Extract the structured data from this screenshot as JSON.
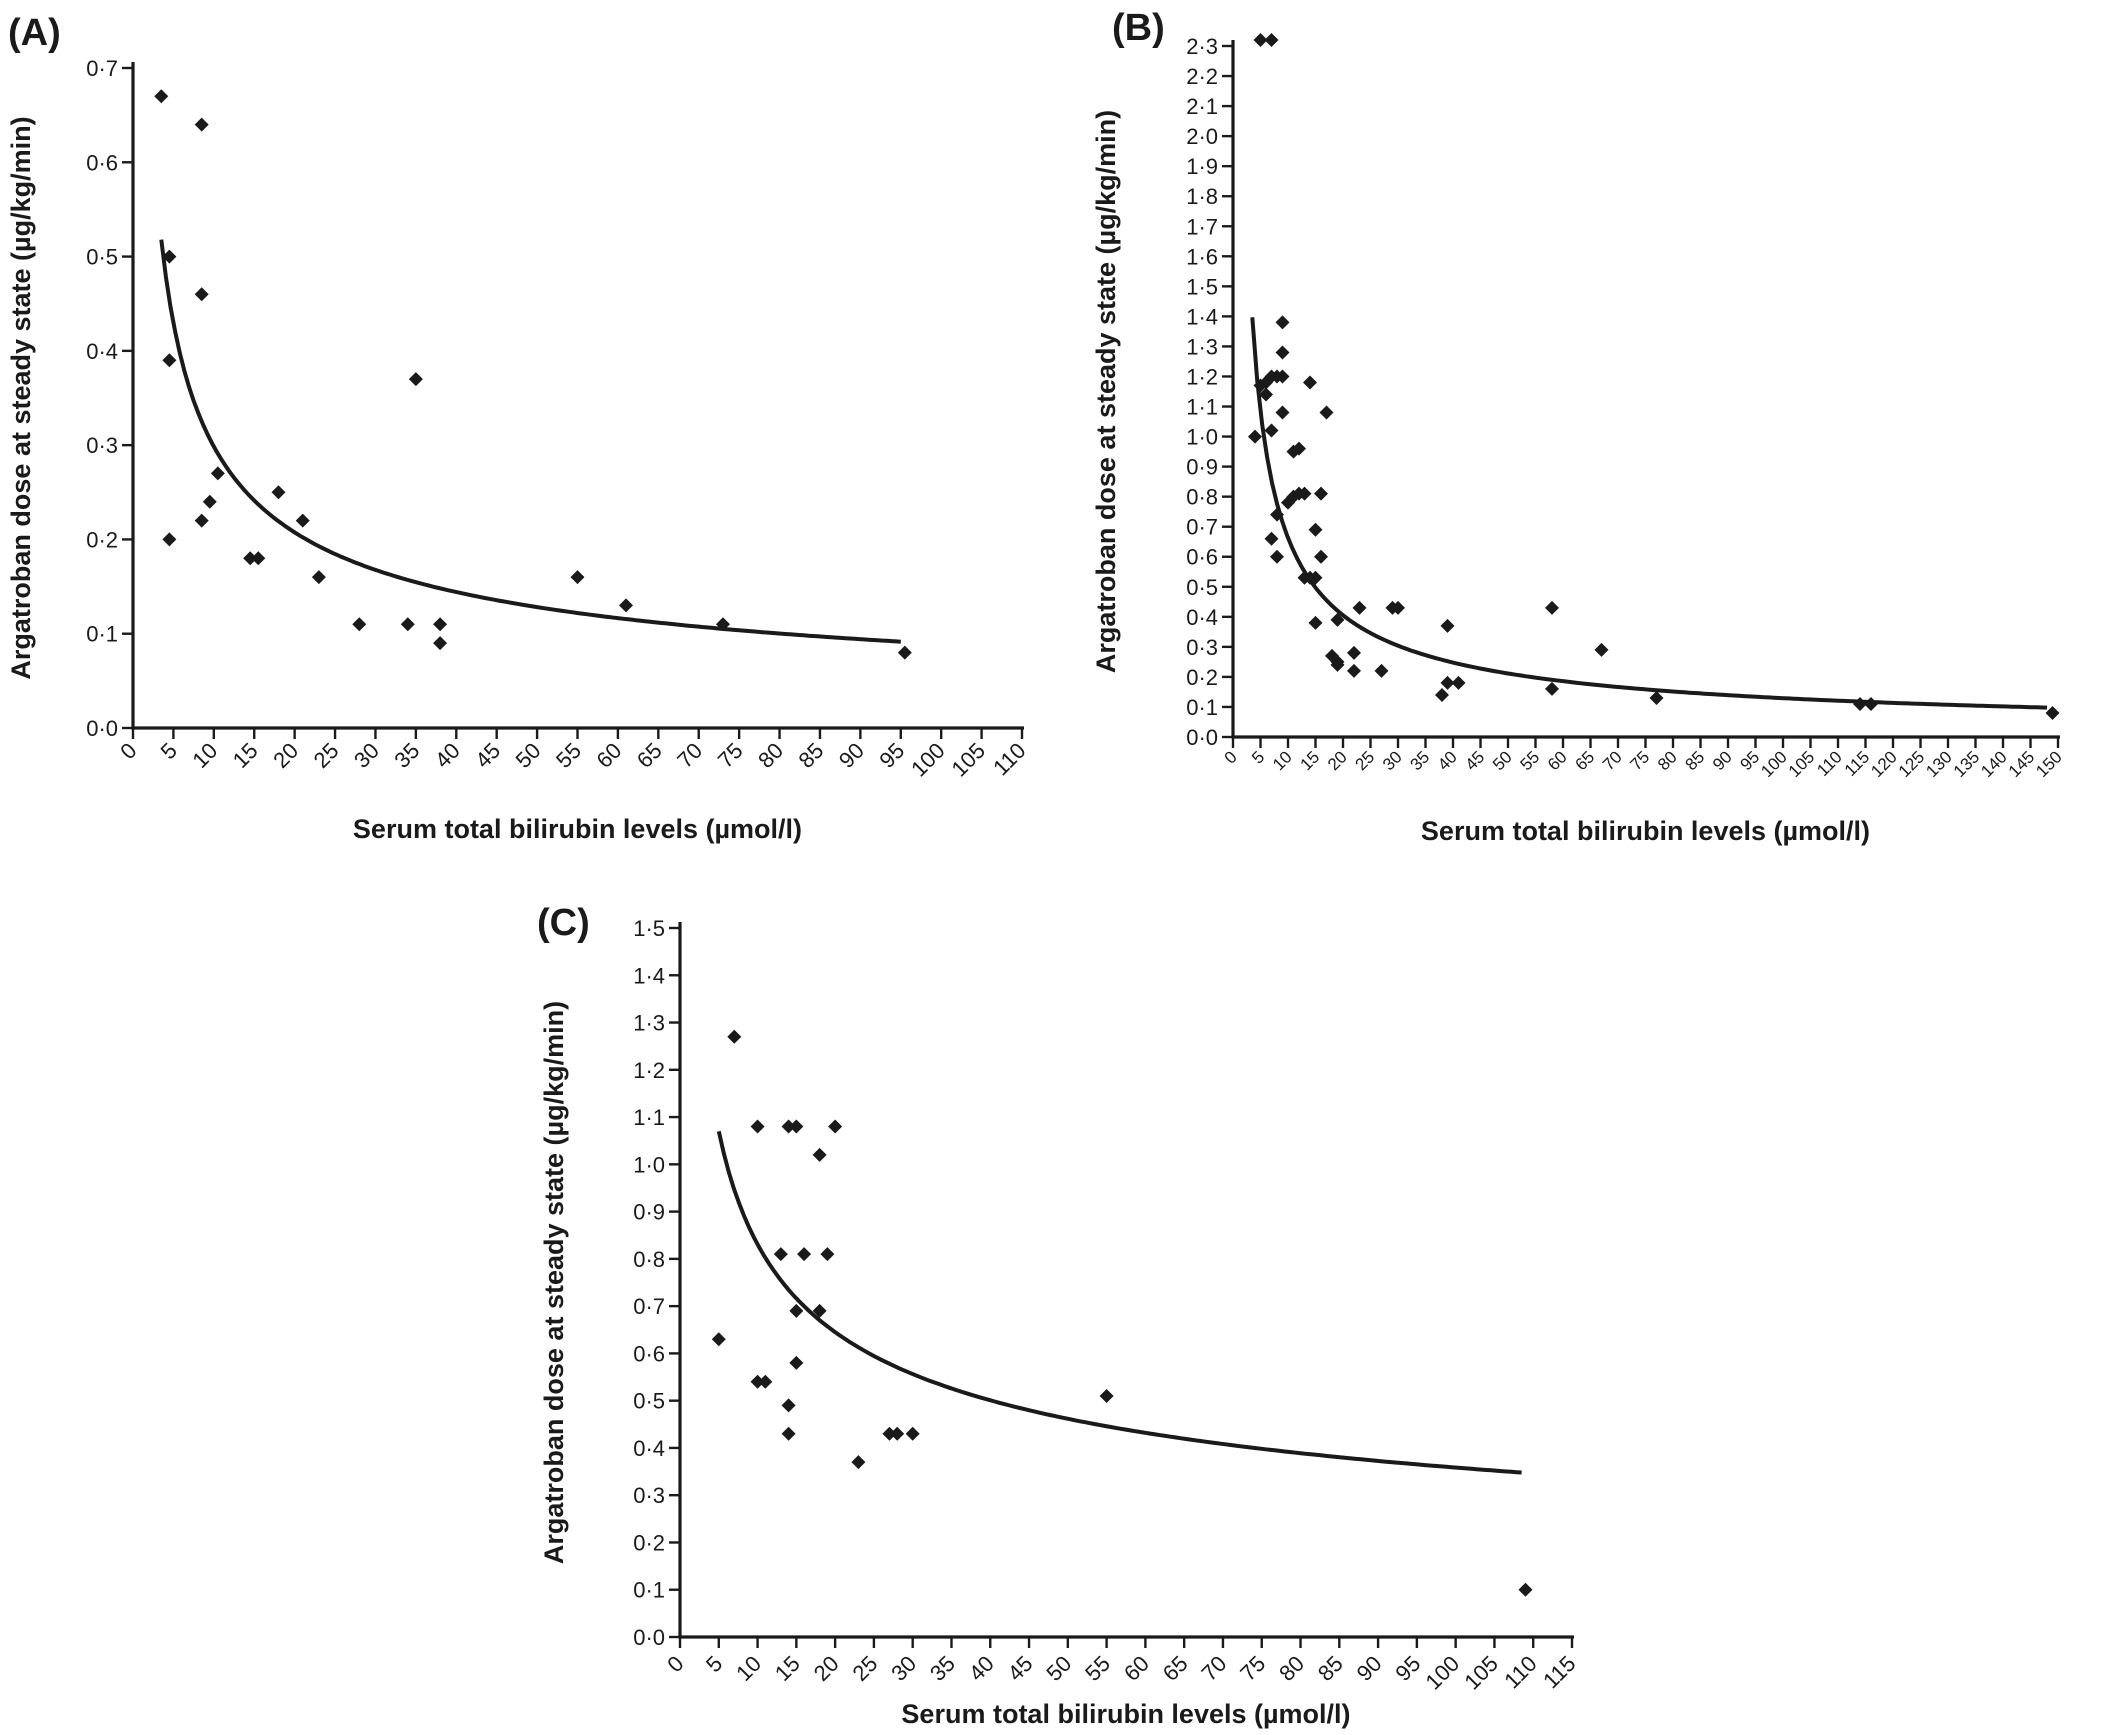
{
  "chart_data": [
    {
      "panel": "(A)",
      "type": "scatter",
      "xlabel": "Serum total bilirubin levels (µmol/l)",
      "ylabel": "Argatroban dose at steady state (µg/kg/min)",
      "xlim": [
        0,
        110
      ],
      "ylim": [
        0,
        0.7
      ],
      "x_ticks": [
        0,
        5,
        10,
        15,
        20,
        25,
        30,
        35,
        40,
        45,
        50,
        55,
        60,
        65,
        70,
        75,
        80,
        85,
        90,
        95,
        100,
        105,
        110
      ],
      "y_ticks": [
        "0·0",
        "0·1",
        "0·2",
        "0·3",
        "0·4",
        "0·5",
        "0·6",
        "0·7"
      ],
      "points": [
        [
          3.5,
          0.67
        ],
        [
          8.5,
          0.64
        ],
        [
          4.5,
          0.5
        ],
        [
          8.5,
          0.46
        ],
        [
          4.5,
          0.39
        ],
        [
          35,
          0.37
        ],
        [
          10.5,
          0.27
        ],
        [
          9.5,
          0.24
        ],
        [
          8.5,
          0.22
        ],
        [
          18,
          0.25
        ],
        [
          21,
          0.22
        ],
        [
          4.5,
          0.2
        ],
        [
          14.5,
          0.18
        ],
        [
          15.5,
          0.18
        ],
        [
          23,
          0.16
        ],
        [
          28,
          0.11
        ],
        [
          34,
          0.11
        ],
        [
          38,
          0.11
        ],
        [
          38,
          0.09
        ],
        [
          55,
          0.16
        ],
        [
          61,
          0.13
        ],
        [
          73,
          0.11
        ],
        [
          95.5,
          0.08
        ]
      ],
      "fit_curve": {
        "form": "power",
        "a": 1.0,
        "b": -0.525,
        "x_range": [
          3.5,
          95
        ]
      }
    },
    {
      "panel": "(B)",
      "type": "scatter",
      "xlabel": "Serum total bilirubin levels (µmol/l)",
      "ylabel": "Argatroban dose at steady state (µg/kg/min)",
      "xlim": [
        0,
        150
      ],
      "ylim": [
        0,
        2.3
      ],
      "x_ticks": [
        0,
        5,
        10,
        15,
        20,
        25,
        30,
        35,
        40,
        45,
        50,
        55,
        60,
        65,
        70,
        75,
        80,
        85,
        90,
        95,
        100,
        105,
        110,
        115,
        120,
        125,
        130,
        135,
        140,
        145,
        150
      ],
      "y_ticks": [
        "0·0",
        "0·1",
        "0·2",
        "0·3",
        "0·4",
        "0·5",
        "0·6",
        "0·7",
        "0·8",
        "0·9",
        "1·0",
        "1·1",
        "1·2",
        "1·3",
        "1·4",
        "1·5",
        "1·6",
        "1·7",
        "1·8",
        "1·9",
        "2·0",
        "2·1",
        "2·2",
        "2·3"
      ],
      "points": [
        [
          5,
          2.32
        ],
        [
          7,
          2.32
        ],
        [
          9,
          1.38
        ],
        [
          9,
          1.28
        ],
        [
          8,
          1.2
        ],
        [
          9,
          1.2
        ],
        [
          6,
          1.18
        ],
        [
          7,
          1.2
        ],
        [
          5,
          1.17
        ],
        [
          6,
          1.14
        ],
        [
          4,
          1.0
        ],
        [
          7,
          1.02
        ],
        [
          9,
          1.08
        ],
        [
          14,
          1.18
        ],
        [
          17,
          1.08
        ],
        [
          11,
          0.95
        ],
        [
          12,
          0.96
        ],
        [
          12,
          0.81
        ],
        [
          13,
          0.81
        ],
        [
          10,
          0.78
        ],
        [
          11,
          0.8
        ],
        [
          16,
          0.81
        ],
        [
          8,
          0.74
        ],
        [
          7,
          0.66
        ],
        [
          15,
          0.69
        ],
        [
          8,
          0.6
        ],
        [
          16,
          0.6
        ],
        [
          13,
          0.53
        ],
        [
          14,
          0.53
        ],
        [
          15,
          0.53
        ],
        [
          15,
          0.38
        ],
        [
          19,
          0.39
        ],
        [
          18,
          0.27
        ],
        [
          19,
          0.25
        ],
        [
          19,
          0.24
        ],
        [
          22,
          0.28
        ],
        [
          22,
          0.22
        ],
        [
          23,
          0.43
        ],
        [
          29,
          0.43
        ],
        [
          30,
          0.43
        ],
        [
          27,
          0.22
        ],
        [
          39,
          0.37
        ],
        [
          39,
          0.18
        ],
        [
          41,
          0.18
        ],
        [
          38,
          0.14
        ],
        [
          58,
          0.43
        ],
        [
          58,
          0.16
        ],
        [
          67,
          0.29
        ],
        [
          77,
          0.13
        ],
        [
          114,
          0.11
        ],
        [
          116,
          0.11
        ],
        [
          149,
          0.08
        ]
      ],
      "fit_curve": {
        "form": "power",
        "a": 3.4,
        "b": -0.71,
        "x_range": [
          3.5,
          148
        ]
      }
    },
    {
      "panel": "(C)",
      "type": "scatter",
      "xlabel": "Serum total bilirubin levels (µmol/l)",
      "ylabel": "Argatroban dose at steady state (µg/kg/min)",
      "xlim": [
        0,
        115
      ],
      "ylim": [
        0,
        1.5
      ],
      "x_ticks": [
        0,
        5,
        10,
        15,
        20,
        25,
        30,
        35,
        40,
        45,
        50,
        55,
        60,
        65,
        70,
        75,
        80,
        85,
        90,
        95,
        100,
        105,
        110,
        115
      ],
      "y_ticks": [
        "0·0",
        "0·1",
        "0·2",
        "0·3",
        "0·4",
        "0·5",
        "0·6",
        "0·7",
        "0·8",
        "0·9",
        "1·0",
        "1·1",
        "1·2",
        "1·3",
        "1·4",
        "1·5"
      ],
      "points": [
        [
          7,
          1.27
        ],
        [
          10,
          1.08
        ],
        [
          14,
          1.08
        ],
        [
          15,
          1.08
        ],
        [
          20,
          1.08
        ],
        [
          18,
          1.02
        ],
        [
          13,
          0.81
        ],
        [
          16,
          0.81
        ],
        [
          19,
          0.81
        ],
        [
          15,
          0.69
        ],
        [
          18,
          0.69
        ],
        [
          5,
          0.63
        ],
        [
          15,
          0.58
        ],
        [
          10,
          0.54
        ],
        [
          11,
          0.54
        ],
        [
          14,
          0.49
        ],
        [
          14,
          0.43
        ],
        [
          27,
          0.43
        ],
        [
          28,
          0.43
        ],
        [
          30,
          0.43
        ],
        [
          23,
          0.37
        ],
        [
          55,
          0.51
        ],
        [
          109,
          0.1
        ]
      ],
      "fit_curve": {
        "form": "power",
        "a": 1.925,
        "b": -0.365,
        "x_range": [
          5,
          108.5
        ]
      }
    }
  ]
}
